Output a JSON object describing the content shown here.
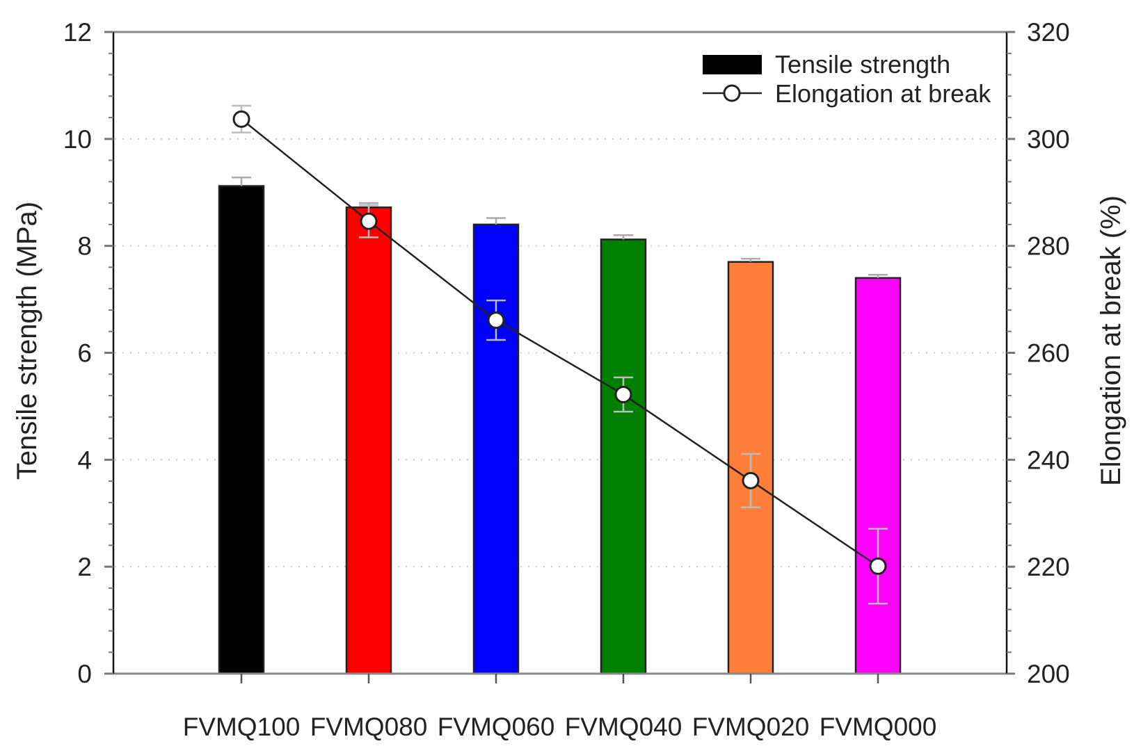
{
  "chart_data": {
    "type": "bar",
    "title": "",
    "xlabel": "",
    "ylabel": "Tensile strength (MPa)",
    "ylabel_right": "Elongation at break (%)",
    "categories": [
      "FVMQ100",
      "FVMQ080",
      "FVMQ060",
      "FVMQ040",
      "FVMQ020",
      "FVMQ000"
    ],
    "ylim": [
      0,
      12
    ],
    "ylim_right": [
      200,
      320
    ],
    "yticks": [
      "0",
      "2",
      "4",
      "6",
      "8",
      "10",
      "12"
    ],
    "yticks_right": [
      "200",
      "220",
      "240",
      "260",
      "280",
      "300",
      "320"
    ],
    "grid": "dotted horizontal at major left ticks",
    "legend_position": "top-right",
    "series": [
      {
        "name": "Tensile strength",
        "kind": "bar",
        "axis": "left",
        "values": [
          9.12,
          8.72,
          8.4,
          8.12,
          7.7,
          7.4
        ],
        "errors": [
          0.16,
          0.08,
          0.12,
          0.08,
          0.06,
          0.06
        ],
        "colors": [
          "#000000",
          "#ff0000",
          "#0000ff",
          "#008000",
          "#ff7f3a",
          "#ff00ff"
        ]
      },
      {
        "name": "Elongation at break",
        "kind": "line",
        "axis": "right",
        "marker": "open-circle",
        "values": [
          303.7,
          284.6,
          266.1,
          252.2,
          236.1,
          220.1
        ],
        "errors": [
          2.5,
          3.0,
          3.7,
          3.2,
          5.0,
          7.0
        ],
        "color": "#000000"
      }
    ]
  }
}
